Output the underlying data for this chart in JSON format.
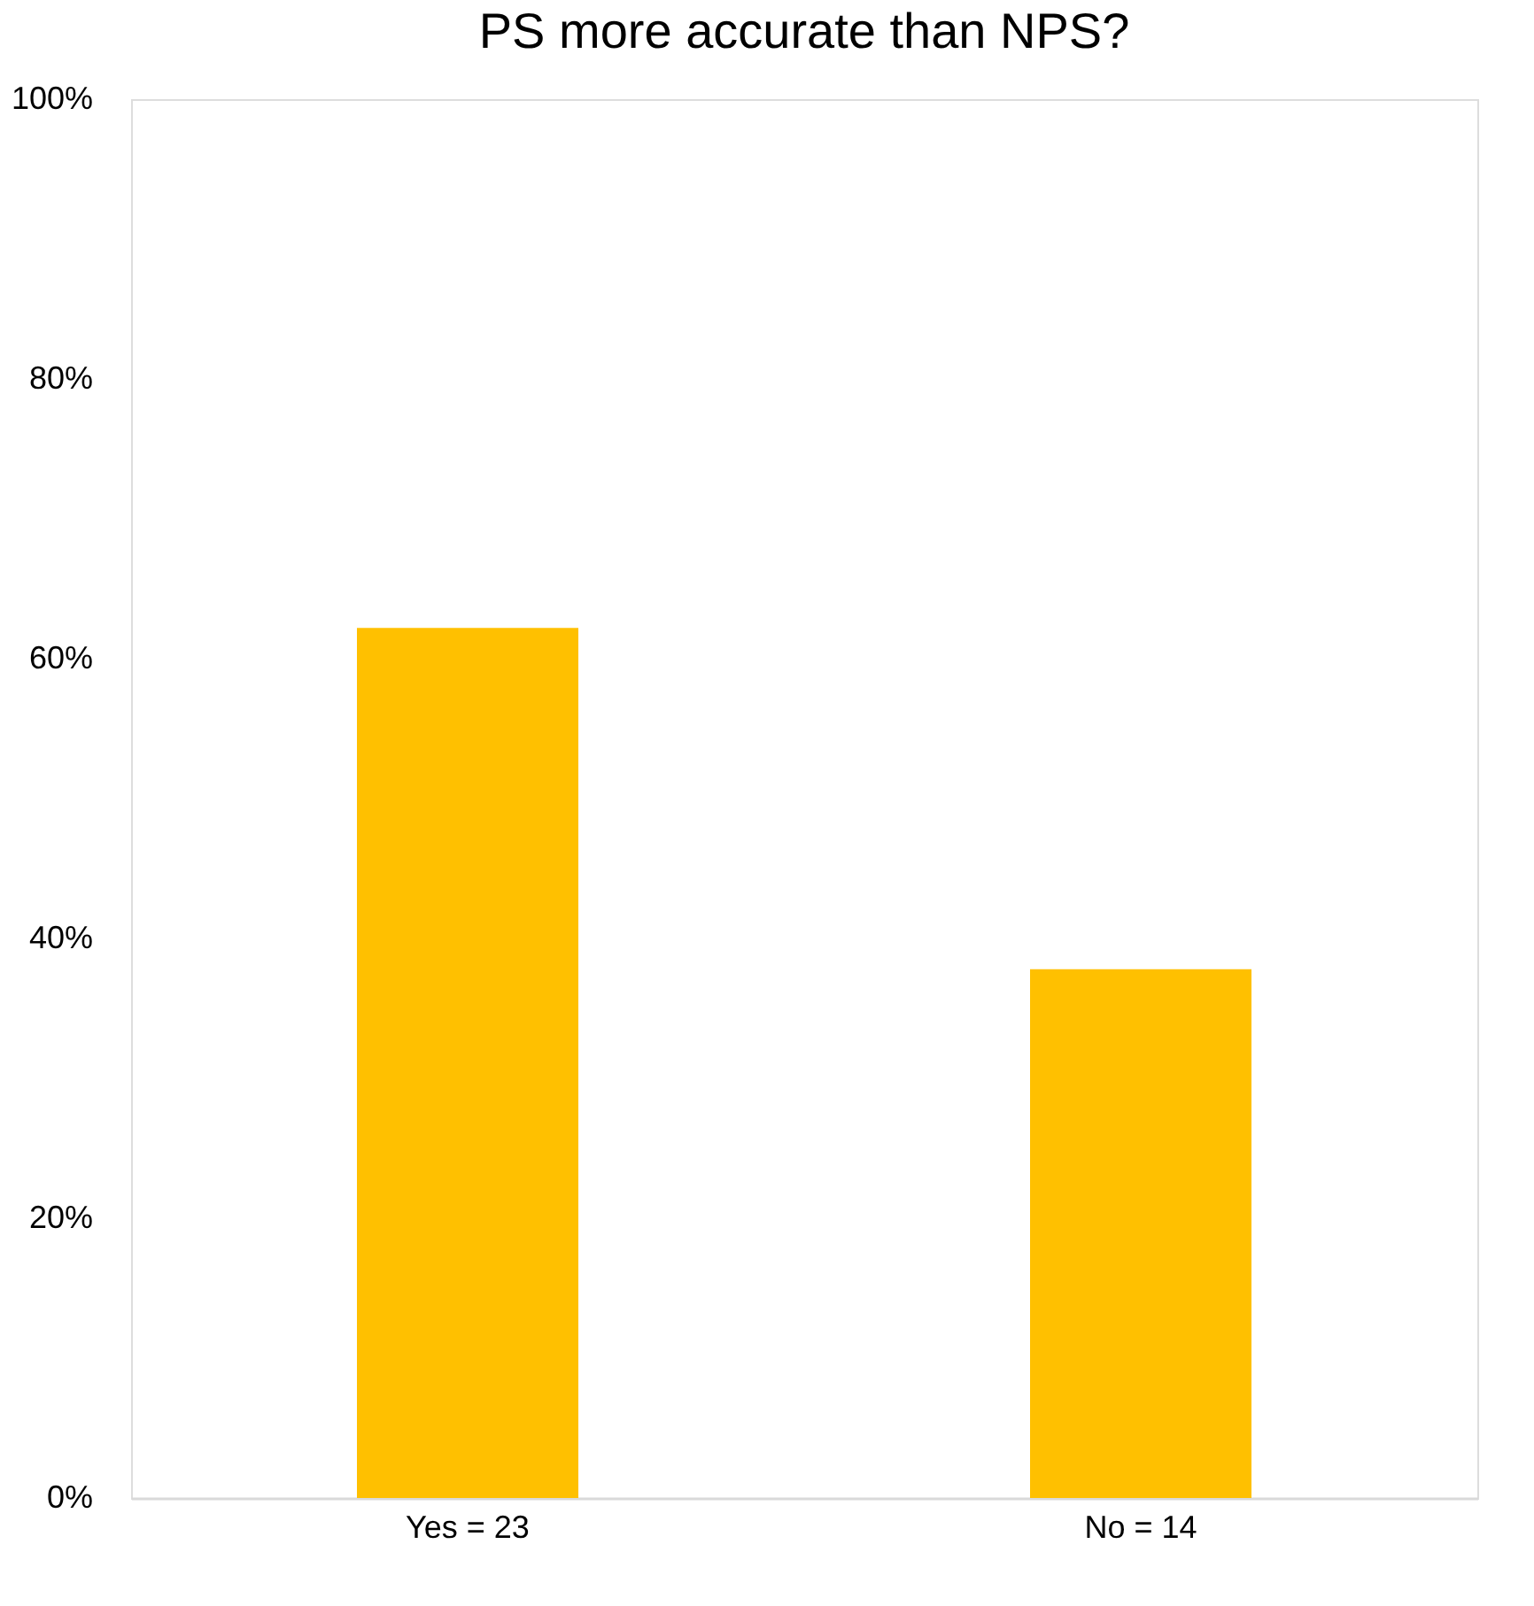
{
  "chart_data": {
    "type": "bar",
    "title": "PS more accurate than NPS?",
    "categories": [
      "Yes = 23",
      "No = 14"
    ],
    "values": [
      62.2,
      37.8
    ],
    "color": "#ffc000",
    "ylim": [
      0,
      100
    ],
    "yticks": [
      {
        "value": 0,
        "label": "0%"
      },
      {
        "value": 20,
        "label": "20%"
      },
      {
        "value": 40,
        "label": "40%"
      },
      {
        "value": 60,
        "label": "60%"
      },
      {
        "value": 80,
        "label": "80%"
      },
      {
        "value": 100,
        "label": "100%"
      }
    ],
    "grid": false
  }
}
